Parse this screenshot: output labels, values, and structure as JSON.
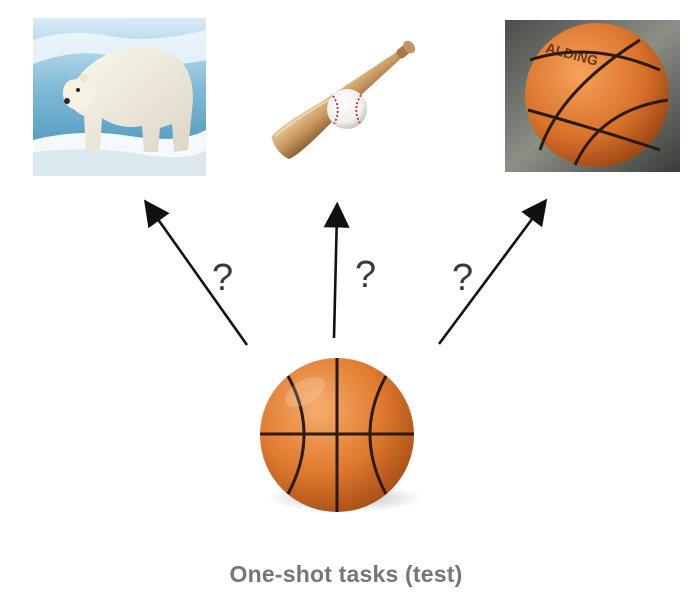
{
  "candidates": [
    {
      "name": "polar-bear-image",
      "label": "polar bear"
    },
    {
      "name": "baseball-bat-image",
      "label": "baseball bat and ball"
    },
    {
      "name": "basketball-photo-image",
      "label": "basketball"
    }
  ],
  "query": {
    "name": "basketball-query-image",
    "label": "basketball"
  },
  "arrows": [
    {
      "name": "arrow-to-polar-bear",
      "question": "?"
    },
    {
      "name": "arrow-to-baseball",
      "question": "?"
    },
    {
      "name": "arrow-to-basketball",
      "question": "?"
    }
  ],
  "caption": "One-shot tasks (test)",
  "colors": {
    "arrow": "#111111",
    "question": "#3a3a3a",
    "caption": "#767676",
    "basketball": "#e07a2e"
  }
}
